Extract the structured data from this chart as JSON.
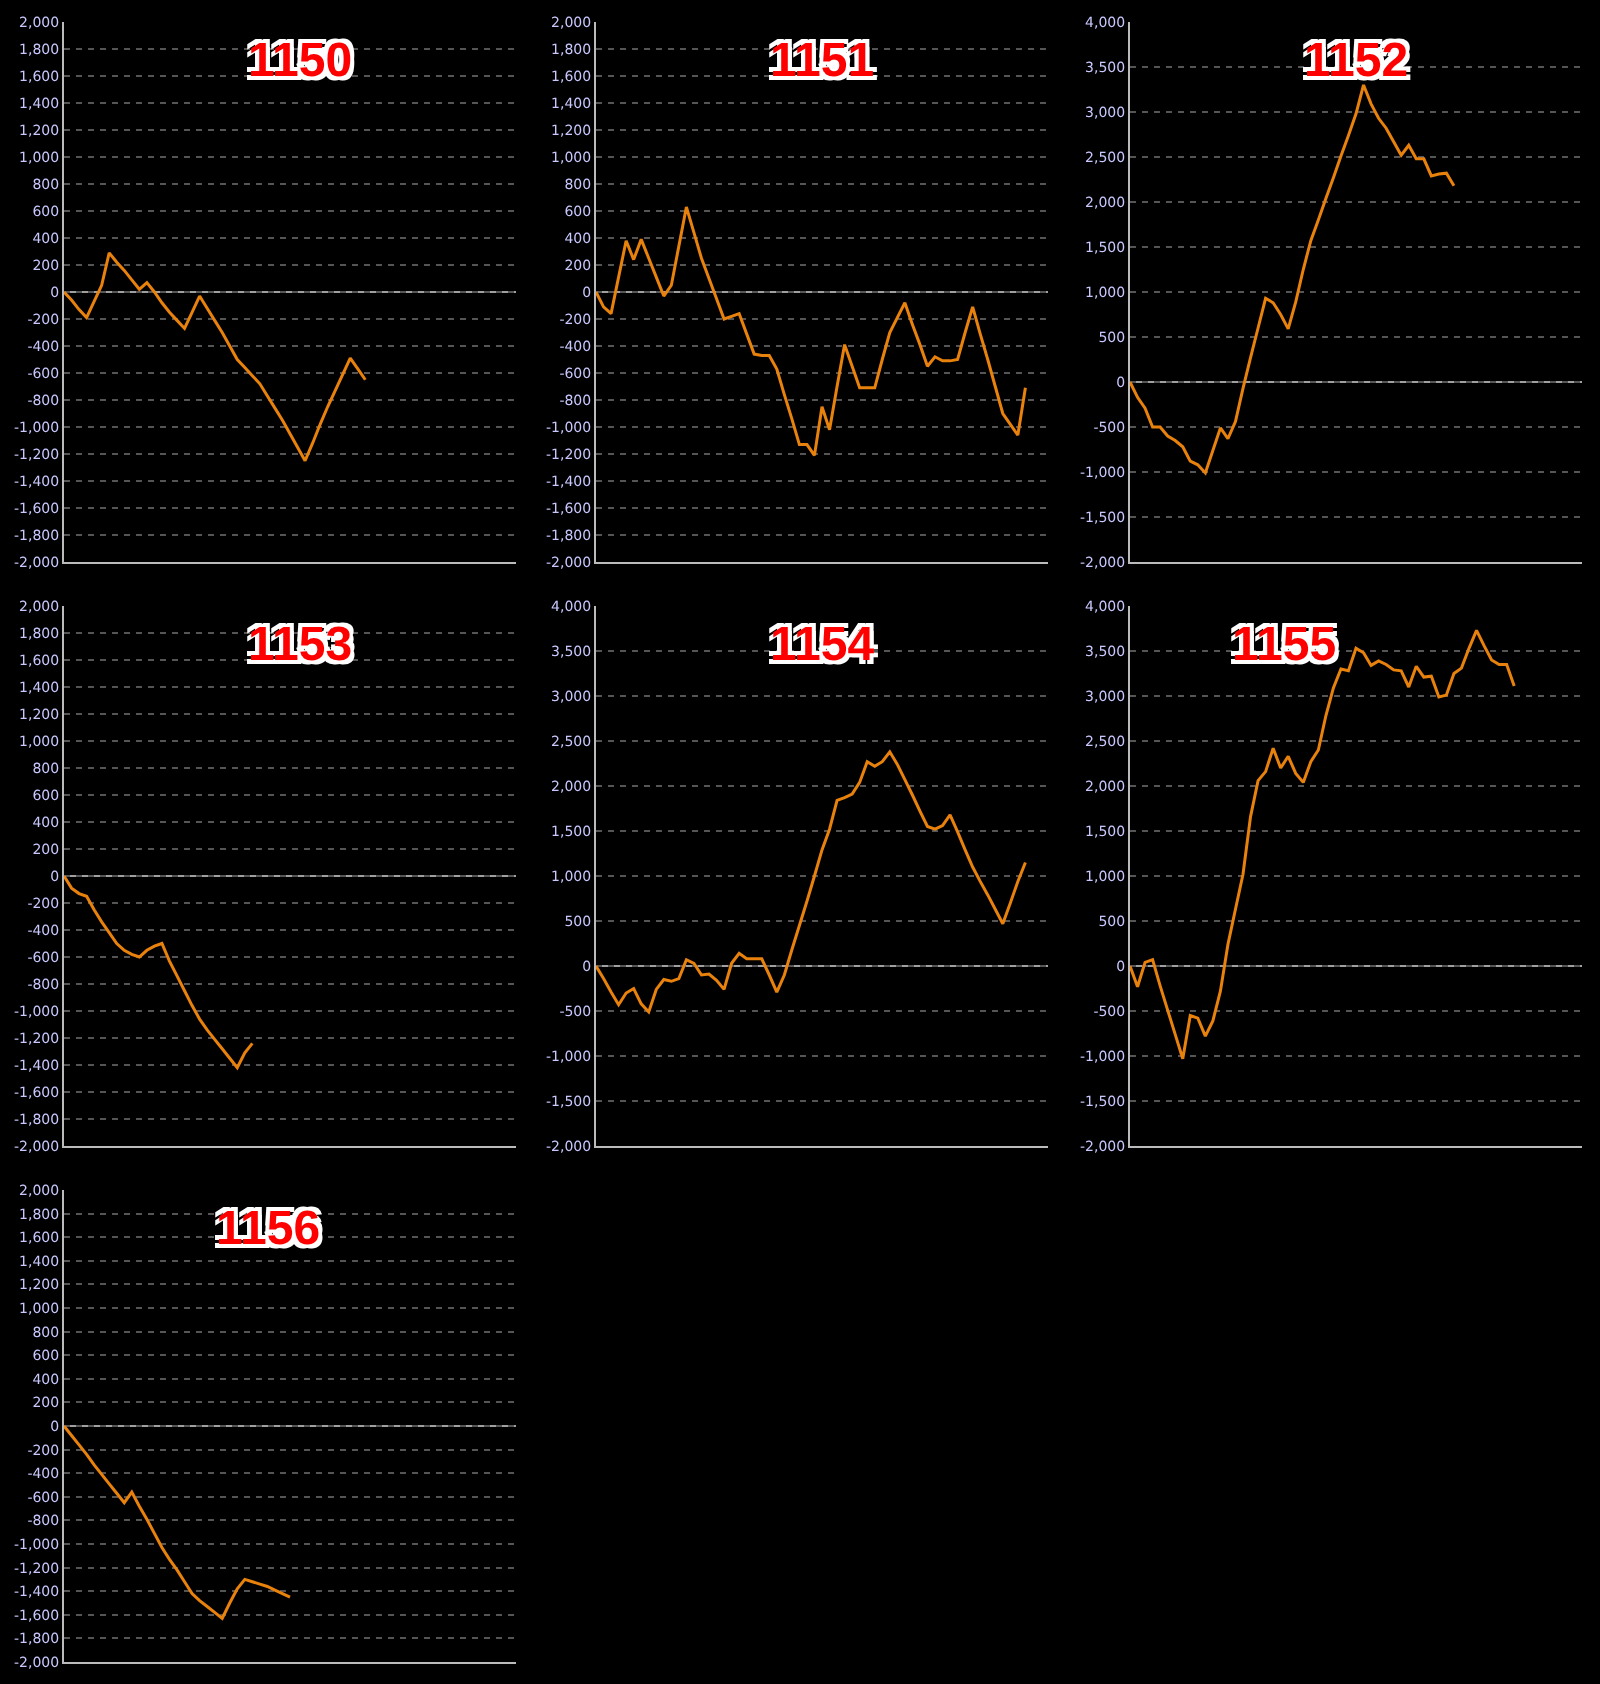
{
  "chart_data": [
    {
      "type": "line",
      "title": "1150",
      "color": "#e8820c",
      "marker": "none",
      "line_style": "solid",
      "grid": "y",
      "tick_labels": "y",
      "categories": [
        null,
        null,
        null,
        null,
        null,
        null,
        null,
        null,
        null,
        null,
        null,
        null,
        null,
        null,
        null,
        null,
        null,
        null,
        null,
        null,
        null,
        null,
        null,
        null,
        null,
        null,
        null,
        null,
        null,
        null,
        null,
        null,
        null,
        null,
        null,
        null,
        null,
        null,
        null,
        null,
        null,
        null,
        null,
        null,
        null,
        null,
        null,
        null,
        null,
        null,
        null,
        null,
        null,
        null,
        null,
        null,
        null,
        null,
        null,
        null,
        null
      ],
      "values": [
        0,
        -60,
        -130,
        -190,
        -70,
        50,
        290,
        220,
        160,
        90,
        20,
        70,
        0,
        -80,
        -150,
        -210,
        -270,
        -150,
        -30,
        -120,
        -210,
        -300,
        -400,
        -500,
        -560,
        -620,
        -680,
        -770,
        -860,
        -950,
        -1050,
        -1150,
        -1250,
        -1120,
        -980,
        -850,
        -730,
        -610,
        -490,
        -570,
        -650,
        null,
        null,
        null,
        null,
        null,
        null,
        null,
        null,
        null,
        null,
        null,
        null,
        null,
        null,
        null,
        null,
        null,
        null,
        null,
        null
      ],
      "ylim": [
        -2000,
        2000
      ],
      "yticks": [
        {
          "value": -2000,
          "label": "-2,000"
        },
        {
          "value": -1800,
          "label": "-1,800"
        },
        {
          "value": -1600,
          "label": "-1,600"
        },
        {
          "value": -1400,
          "label": "-1,400"
        },
        {
          "value": -1200,
          "label": "-1,200"
        },
        {
          "value": -1000,
          "label": "-1,000"
        },
        -800,
        -600,
        -400,
        -200,
        0,
        200,
        400,
        600,
        800,
        {
          "value": 1000,
          "label": "1,000"
        },
        {
          "value": 1200,
          "label": "1,200"
        },
        {
          "value": 1400,
          "label": "1,400"
        },
        {
          "value": 1600,
          "label": "1,600"
        },
        {
          "value": 1800,
          "label": "1,800"
        },
        {
          "value": 2000,
          "label": "2,000"
        }
      ],
      "ref_lines": [
        {
          "axis": "y",
          "value": 0,
          "color": "#a0a0a0"
        }
      ]
    },
    {
      "type": "line",
      "title": "1151",
      "color": "#e8820c",
      "marker": "none",
      "line_style": "solid",
      "grid": "y",
      "tick_labels": "y",
      "categories": [
        null,
        null,
        null,
        null,
        null,
        null,
        null,
        null,
        null,
        null,
        null,
        null,
        null,
        null,
        null,
        null,
        null,
        null,
        null,
        null,
        null,
        null,
        null,
        null,
        null,
        null,
        null,
        null,
        null,
        null,
        null,
        null,
        null,
        null,
        null,
        null,
        null,
        null,
        null,
        null,
        null,
        null,
        null,
        null,
        null,
        null,
        null,
        null,
        null,
        null,
        null,
        null,
        null,
        null,
        null,
        null,
        null,
        null,
        null,
        null,
        null
      ],
      "values": [
        0,
        -110,
        -160,
        110,
        380,
        240,
        390,
        250,
        110,
        -30,
        50,
        340,
        630,
        440,
        250,
        100,
        -50,
        -200,
        -180,
        -160,
        -310,
        -460,
        -470,
        -470,
        -570,
        -760,
        -940,
        -1130,
        -1130,
        -1210,
        -850,
        -1020,
        -700,
        -390,
        -550,
        -710,
        -710,
        -710,
        -500,
        -300,
        -190,
        -80,
        -240,
        -390,
        -550,
        -480,
        -510,
        -510,
        -500,
        -300,
        -110,
        -310,
        -500,
        -700,
        -900,
        -980,
        -1060,
        -710,
        null,
        null,
        null
      ],
      "ylim": [
        -2000,
        2000
      ],
      "yticks": [
        {
          "value": -2000,
          "label": "-2,000"
        },
        {
          "value": -1800,
          "label": "-1,800"
        },
        {
          "value": -1600,
          "label": "-1,600"
        },
        {
          "value": -1400,
          "label": "-1,400"
        },
        {
          "value": -1200,
          "label": "-1,200"
        },
        {
          "value": -1000,
          "label": "-1,000"
        },
        -800,
        -600,
        -400,
        -200,
        0,
        200,
        400,
        600,
        800,
        {
          "value": 1000,
          "label": "1,000"
        },
        {
          "value": 1200,
          "label": "1,200"
        },
        {
          "value": 1400,
          "label": "1,400"
        },
        {
          "value": 1600,
          "label": "1,600"
        },
        {
          "value": 1800,
          "label": "1,800"
        },
        {
          "value": 2000,
          "label": "2,000"
        }
      ],
      "ref_lines": [
        {
          "axis": "y",
          "value": 0,
          "color": "#a0a0a0"
        }
      ]
    },
    {
      "type": "line",
      "title": "1152",
      "color": "#e8820c",
      "marker": "none",
      "line_style": "solid",
      "grid": "y",
      "tick_labels": "y",
      "categories": [
        null,
        null,
        null,
        null,
        null,
        null,
        null,
        null,
        null,
        null,
        null,
        null,
        null,
        null,
        null,
        null,
        null,
        null,
        null,
        null,
        null,
        null,
        null,
        null,
        null,
        null,
        null,
        null,
        null,
        null,
        null,
        null,
        null,
        null,
        null,
        null,
        null,
        null,
        null,
        null,
        null,
        null,
        null,
        null,
        null,
        null,
        null,
        null,
        null,
        null,
        null,
        null,
        null,
        null,
        null,
        null,
        null,
        null,
        null,
        null,
        null
      ],
      "values": [
        0,
        -170,
        -290,
        -500,
        -500,
        -600,
        -650,
        -720,
        -880,
        -920,
        -1010,
        -760,
        -510,
        -630,
        -440,
        -70,
        270,
        600,
        930,
        880,
        750,
        590,
        890,
        1250,
        1570,
        1800,
        2040,
        2270,
        2510,
        2740,
        2980,
        3300,
        3090,
        2930,
        2820,
        2670,
        2520,
        2630,
        2480,
        2480,
        2290,
        2310,
        2320,
        2180,
        null,
        null,
        null,
        null,
        null,
        null,
        null,
        null,
        null,
        null,
        null,
        null,
        null,
        null,
        null,
        null,
        null
      ],
      "ylim": [
        -2000,
        4000
      ],
      "yticks": [
        {
          "value": -2000,
          "label": "-2,000"
        },
        {
          "value": -1500,
          "label": "-1,500"
        },
        {
          "value": -1000,
          "label": "-1,000"
        },
        -500,
        0,
        500,
        {
          "value": 1000,
          "label": "1,000"
        },
        {
          "value": 1500,
          "label": "1,500"
        },
        {
          "value": 2000,
          "label": "2,000"
        },
        {
          "value": 2500,
          "label": "2,500"
        },
        {
          "value": 3000,
          "label": "3,000"
        },
        {
          "value": 3500,
          "label": "3,500"
        },
        {
          "value": 4000,
          "label": "4,000"
        }
      ],
      "ref_lines": [
        {
          "axis": "y",
          "value": 0,
          "color": "#a0a0a0"
        }
      ]
    },
    {
      "type": "line",
      "title": "1153",
      "color": "#e8820c",
      "marker": "none",
      "line_style": "solid",
      "grid": "y",
      "tick_labels": "y",
      "categories": [
        null,
        null,
        null,
        null,
        null,
        null,
        null,
        null,
        null,
        null,
        null,
        null,
        null,
        null,
        null,
        null,
        null,
        null,
        null,
        null,
        null,
        null,
        null,
        null,
        null,
        null,
        null,
        null,
        null,
        null,
        null,
        null,
        null,
        null,
        null,
        null,
        null,
        null,
        null,
        null,
        null,
        null,
        null,
        null,
        null,
        null,
        null,
        null,
        null,
        null,
        null,
        null,
        null,
        null,
        null,
        null,
        null,
        null,
        null,
        null,
        null
      ],
      "values": [
        0,
        -90,
        -130,
        -150,
        -250,
        -340,
        -420,
        -500,
        -550,
        -580,
        -600,
        -550,
        -520,
        -500,
        -630,
        -740,
        -850,
        -960,
        -1060,
        -1140,
        -1210,
        -1280,
        -1350,
        -1420,
        -1310,
        -1240,
        null,
        null,
        null,
        null,
        null,
        null,
        null,
        null,
        null,
        null,
        null,
        null,
        null,
        null,
        null,
        null,
        null,
        null,
        null,
        null,
        null,
        null,
        null,
        null,
        null,
        null,
        null,
        null,
        null,
        null,
        null,
        null,
        null,
        null,
        null
      ],
      "ylim": [
        -2000,
        2000
      ],
      "yticks": [
        {
          "value": -2000,
          "label": "-2,000"
        },
        {
          "value": -1800,
          "label": "-1,800"
        },
        {
          "value": -1600,
          "label": "-1,600"
        },
        {
          "value": -1400,
          "label": "-1,400"
        },
        {
          "value": -1200,
          "label": "-1,200"
        },
        {
          "value": -1000,
          "label": "-1,000"
        },
        -800,
        -600,
        -400,
        -200,
        0,
        200,
        400,
        600,
        800,
        {
          "value": 1000,
          "label": "1,000"
        },
        {
          "value": 1200,
          "label": "1,200"
        },
        {
          "value": 1400,
          "label": "1,400"
        },
        {
          "value": 1600,
          "label": "1,600"
        },
        {
          "value": 1800,
          "label": "1,800"
        },
        {
          "value": 2000,
          "label": "2,000"
        }
      ],
      "ref_lines": [
        {
          "axis": "y",
          "value": 0,
          "color": "#a0a0a0"
        }
      ]
    },
    {
      "type": "line",
      "title": "1154",
      "color": "#e8820c",
      "marker": "none",
      "line_style": "solid",
      "grid": "y",
      "tick_labels": "y",
      "categories": [
        null,
        null,
        null,
        null,
        null,
        null,
        null,
        null,
        null,
        null,
        null,
        null,
        null,
        null,
        null,
        null,
        null,
        null,
        null,
        null,
        null,
        null,
        null,
        null,
        null,
        null,
        null,
        null,
        null,
        null,
        null,
        null,
        null,
        null,
        null,
        null,
        null,
        null,
        null,
        null,
        null,
        null,
        null,
        null,
        null,
        null,
        null,
        null,
        null,
        null,
        null,
        null,
        null,
        null,
        null,
        null,
        null,
        null,
        null,
        null,
        null
      ],
      "values": [
        0,
        -140,
        -290,
        -430,
        -300,
        -250,
        -420,
        -510,
        -260,
        -150,
        -170,
        -140,
        70,
        30,
        -100,
        -90,
        -160,
        -260,
        30,
        140,
        80,
        80,
        80,
        -100,
        -290,
        -100,
        180,
        450,
        720,
        1000,
        1290,
        1520,
        1840,
        1870,
        1910,
        2040,
        2270,
        2220,
        2270,
        2380,
        2240,
        2070,
        1900,
        1720,
        1550,
        1520,
        1560,
        1680,
        1490,
        1290,
        1100,
        940,
        790,
        630,
        470,
        700,
        940,
        1150,
        null,
        null,
        null
      ],
      "ylim": [
        -2000,
        4000
      ],
      "yticks": [
        {
          "value": -2000,
          "label": "-2,000"
        },
        {
          "value": -1500,
          "label": "-1,500"
        },
        {
          "value": -1000,
          "label": "-1,000"
        },
        -500,
        0,
        500,
        {
          "value": 1000,
          "label": "1,000"
        },
        {
          "value": 1500,
          "label": "1,500"
        },
        {
          "value": 2000,
          "label": "2,000"
        },
        {
          "value": 2500,
          "label": "2,500"
        },
        {
          "value": 3000,
          "label": "3,000"
        },
        {
          "value": 3500,
          "label": "3,500"
        },
        {
          "value": 4000,
          "label": "4,000"
        }
      ],
      "ref_lines": [
        {
          "axis": "y",
          "value": 0,
          "color": "#a0a0a0"
        }
      ]
    },
    {
      "type": "line",
      "title": "1155",
      "color": "#e8820c",
      "marker": "none",
      "line_style": "solid",
      "grid": "y",
      "tick_labels": "y",
      "categories": [
        null,
        null,
        null,
        null,
        null,
        null,
        null,
        null,
        null,
        null,
        null,
        null,
        null,
        null,
        null,
        null,
        null,
        null,
        null,
        null,
        null,
        null,
        null,
        null,
        null,
        null,
        null,
        null,
        null,
        null,
        null,
        null,
        null,
        null,
        null,
        null,
        null,
        null,
        null,
        null,
        null,
        null,
        null,
        null,
        null,
        null,
        null,
        null,
        null,
        null,
        null,
        null,
        null,
        null,
        null,
        null,
        null,
        null,
        null,
        null,
        null
      ],
      "values": [
        0,
        -230,
        40,
        70,
        -220,
        -490,
        -760,
        -1030,
        -550,
        -580,
        -780,
        -610,
        -280,
        240,
        630,
        1020,
        1660,
        2060,
        2160,
        2420,
        2200,
        2330,
        2140,
        2040,
        2270,
        2400,
        2780,
        3090,
        3300,
        3280,
        3530,
        3480,
        3340,
        3390,
        3350,
        3290,
        3280,
        3100,
        3330,
        3210,
        3220,
        2990,
        3010,
        3250,
        3310,
        3530,
        3730,
        3560,
        3400,
        3350,
        3350,
        3110,
        null,
        null,
        null,
        null,
        null,
        null,
        null,
        null,
        null
      ],
      "ylim": [
        -2000,
        4000
      ],
      "yticks": [
        {
          "value": -2000,
          "label": "-2,000"
        },
        {
          "value": -1500,
          "label": "-1,500"
        },
        {
          "value": -1000,
          "label": "-1,000"
        },
        -500,
        0,
        500,
        {
          "value": 1000,
          "label": "1,000"
        },
        {
          "value": 1500,
          "label": "1,500"
        },
        {
          "value": 2000,
          "label": "2,000"
        },
        {
          "value": 2500,
          "label": "2,500"
        },
        {
          "value": 3000,
          "label": "3,000"
        },
        {
          "value": 3500,
          "label": "3,500"
        },
        {
          "value": 4000,
          "label": "4,000"
        }
      ],
      "ref_lines": [
        {
          "axis": "y",
          "value": 0,
          "color": "#a0a0a0"
        }
      ]
    },
    {
      "type": "line",
      "title": "1156",
      "color": "#e8820c",
      "marker": "none",
      "line_style": "solid",
      "grid": "y",
      "tick_labels": "y",
      "categories": [
        null,
        null,
        null,
        null,
        null,
        null,
        null,
        null,
        null,
        null,
        null,
        null,
        null,
        null,
        null,
        null,
        null,
        null,
        null,
        null,
        null,
        null,
        null,
        null,
        null,
        null,
        null,
        null,
        null,
        null,
        null,
        null,
        null,
        null,
        null,
        null,
        null,
        null,
        null,
        null,
        null,
        null,
        null,
        null,
        null,
        null,
        null,
        null,
        null,
        null,
        null,
        null,
        null,
        null,
        null,
        null,
        null,
        null,
        null,
        null,
        null
      ],
      "values": [
        0,
        -80,
        -160,
        -240,
        -330,
        -410,
        -490,
        -570,
        -650,
        -560,
        -680,
        -790,
        -910,
        -1030,
        -1130,
        -1220,
        -1320,
        -1420,
        -1480,
        -1530,
        -1580,
        -1630,
        -1500,
        -1380,
        -1300,
        -1320,
        -1340,
        -1360,
        -1390,
        -1420,
        -1450,
        null,
        null,
        null,
        null,
        null,
        null,
        null,
        null,
        null,
        null,
        null,
        null,
        null,
        null,
        null,
        null,
        null,
        null,
        null,
        null,
        null,
        null,
        null,
        null,
        null,
        null,
        null,
        null,
        null,
        null
      ],
      "ylim": [
        -2000,
        2000
      ],
      "yticks": [
        {
          "value": -2000,
          "label": "-2,000"
        },
        {
          "value": -1800,
          "label": "-1,800"
        },
        {
          "value": -1600,
          "label": "-1,600"
        },
        {
          "value": -1400,
          "label": "-1,400"
        },
        {
          "value": -1200,
          "label": "-1,200"
        },
        {
          "value": -1000,
          "label": "-1,000"
        },
        -800,
        -600,
        -400,
        -200,
        0,
        200,
        400,
        600,
        800,
        {
          "value": 1000,
          "label": "1,000"
        },
        {
          "value": 1200,
          "label": "1,200"
        },
        {
          "value": 1400,
          "label": "1,400"
        },
        {
          "value": 1600,
          "label": "1,600"
        },
        {
          "value": 1800,
          "label": "1,800"
        },
        {
          "value": 2000,
          "label": "2,000"
        }
      ],
      "ref_lines": [
        {
          "axis": "y",
          "value": 0,
          "color": "#a0a0a0"
        }
      ]
    }
  ]
}
